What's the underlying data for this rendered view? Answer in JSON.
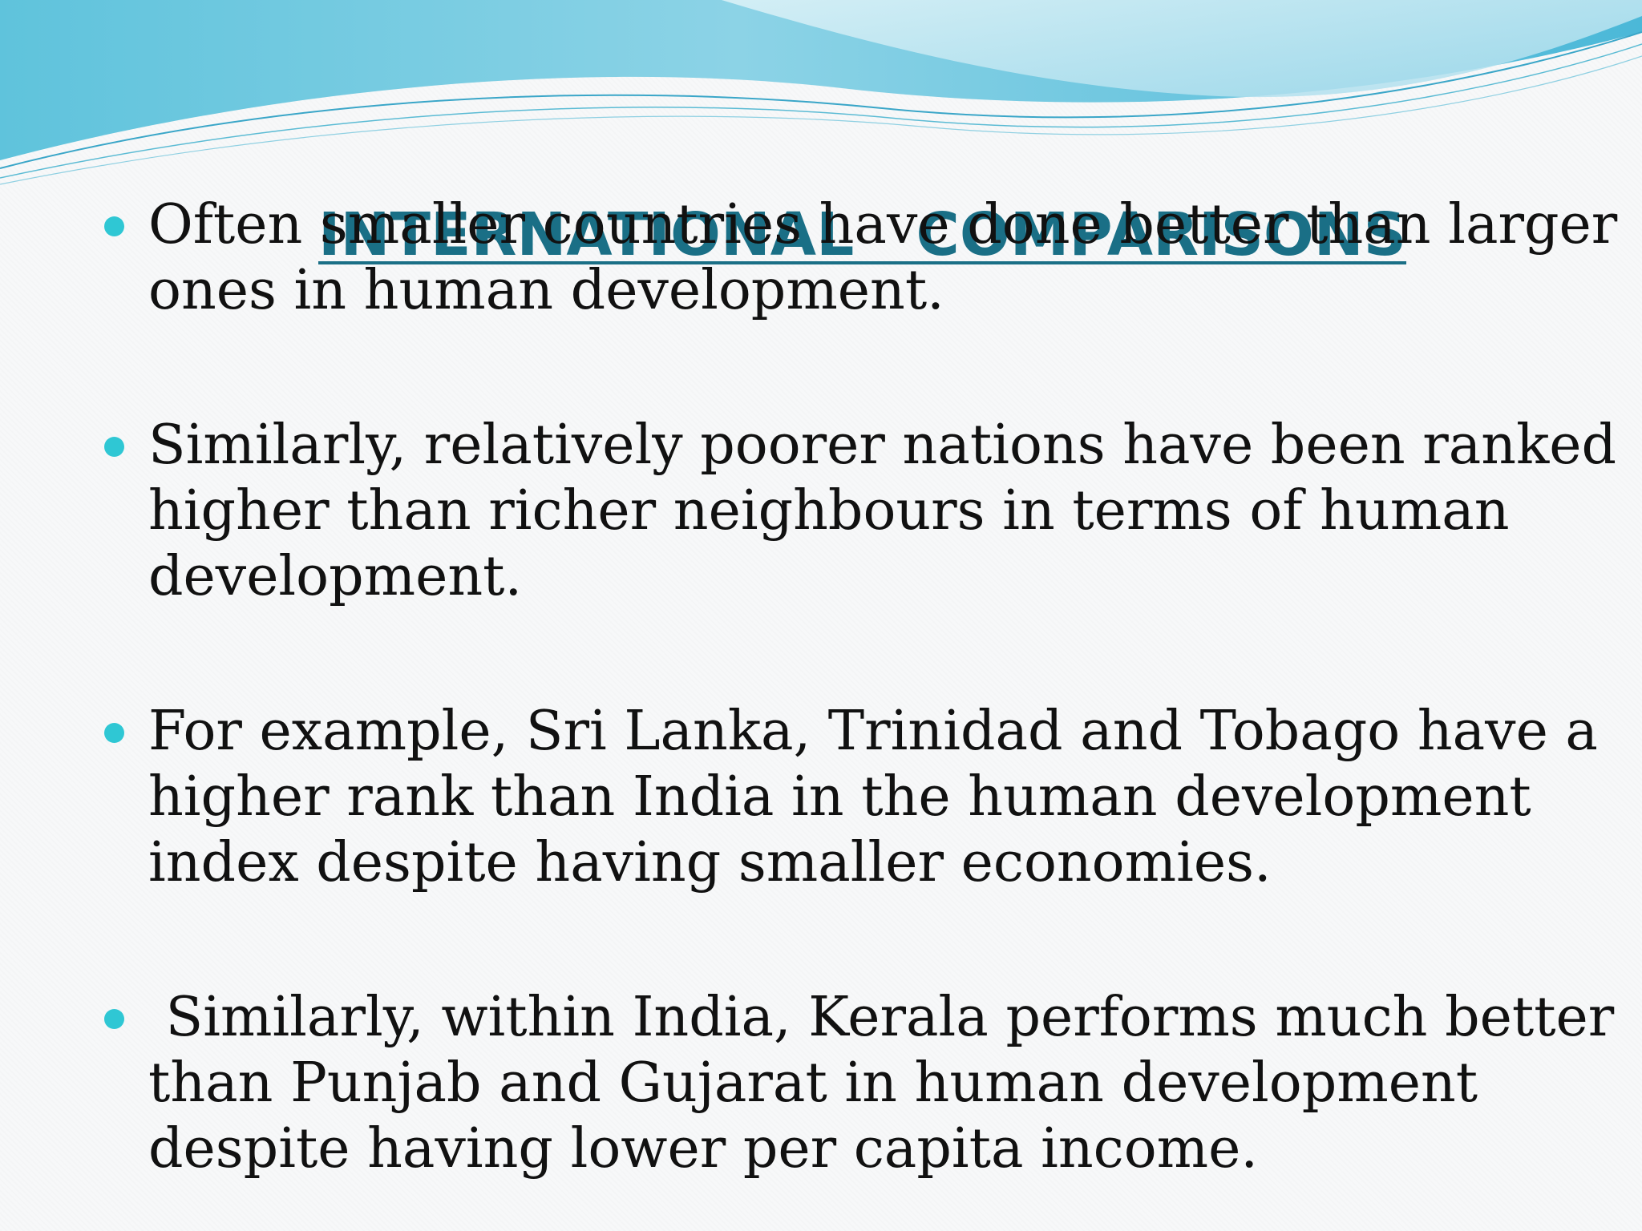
{
  "slide": {
    "title": "INTERNATIONAL   COMPARISONS",
    "bullets": [
      "Often smaller countries have done better than larger\nones in human development.",
      "Similarly, relatively poorer nations have been ranked\nhigher than richer neighbours in terms of human\ndevelopment.",
      "For example, Sri Lanka, Trinidad and Tobago have a\nhigher rank than India in the human development\nindex despite having smaller economies.",
      " Similarly, within India, Kerala performs much better\nthan Punjab and Gujarat in human development\ndespite having lower per capita income."
    ]
  },
  "colors": {
    "title": "#1a6f86",
    "bullet_marker": "#2fc7d4",
    "body_text": "#111111",
    "wave_light": "#bfe6ef",
    "wave_mid": "#7cc8dd",
    "wave_dark": "#3aa6c8"
  }
}
